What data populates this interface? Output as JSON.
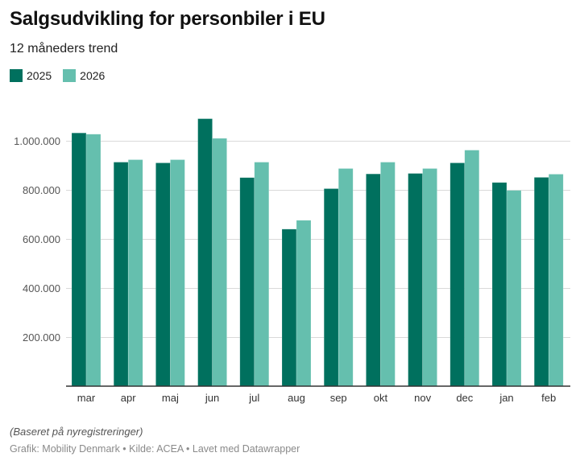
{
  "header": {
    "title": "Salgsudvikling for personbiler i EU",
    "subtitle": "12 måneders trend"
  },
  "legend": [
    {
      "label": "2025",
      "color": "#00705e"
    },
    {
      "label": "2026",
      "color": "#65bfae"
    }
  ],
  "footer": {
    "note": "(Baseret på nyregistreringer)",
    "credit": "Grafik: Mobility Denmark • Kilde: ACEA • Lavet med Datawrapper"
  },
  "chart_data": {
    "type": "bar",
    "title": "Salgsudvikling for personbiler i EU",
    "subtitle": "12 måneders trend",
    "xlabel": "",
    "ylabel": "",
    "categories": [
      "mar",
      "apr",
      "maj",
      "jun",
      "jul",
      "aug",
      "sep",
      "okt",
      "nov",
      "dec",
      "jan",
      "feb"
    ],
    "series": [
      {
        "name": "2025",
        "color": "#00705e",
        "values": [
          1032000,
          913000,
          910000,
          1090000,
          850000,
          640000,
          805000,
          865000,
          867000,
          910000,
          830000,
          851000
        ]
      },
      {
        "name": "2026",
        "color": "#65bfae",
        "values": [
          1027000,
          923000,
          923000,
          1010000,
          913000,
          676000,
          887000,
          913000,
          887000,
          962000,
          798000,
          864000
        ]
      }
    ],
    "ylim": [
      0,
      1100000
    ],
    "yticks": [
      200000,
      400000,
      600000,
      800000,
      1000000
    ],
    "ytick_labels": [
      "200.000",
      "400.000",
      "600.000",
      "800.000",
      "1.000.000"
    ],
    "grid": true,
    "legend_position": "top-left"
  }
}
